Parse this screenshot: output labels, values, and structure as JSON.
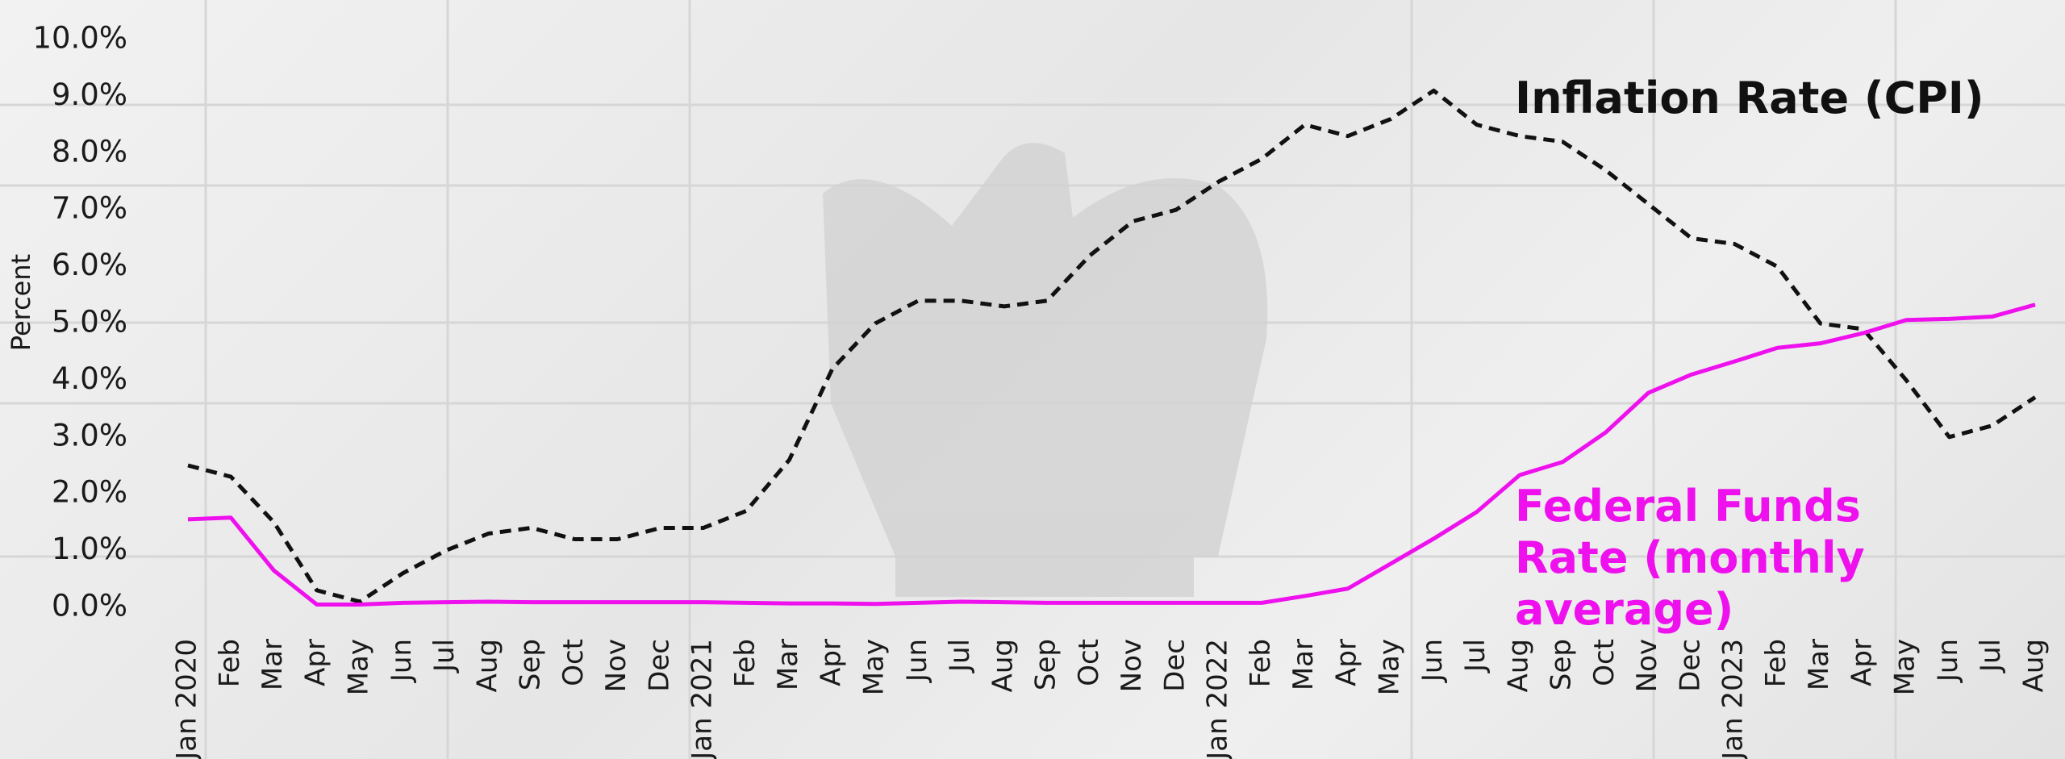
{
  "chart_data": {
    "type": "line",
    "y_label": "Percent",
    "categories": [
      "Jan 2020",
      "Feb",
      "Mar",
      "Apr",
      "May",
      "Jun",
      "Jul",
      "Aug",
      "Sep",
      "Oct",
      "Nov",
      "Dec",
      "Jan 2021",
      "Feb",
      "Mar",
      "Apr",
      "May",
      "Jun",
      "Jul",
      "Aug",
      "Sep",
      "Oct",
      "Nov",
      "Dec",
      "Jan 2022",
      "Feb",
      "Mar",
      "Apr",
      "May",
      "Jun",
      "Jul",
      "Aug",
      "Sep",
      "Oct",
      "Nov",
      "Dec",
      "Jan 2023",
      "Feb",
      "Mar",
      "Apr",
      "May",
      "Jun",
      "Jul",
      "Aug"
    ],
    "ylim": [
      0,
      10
    ],
    "yticks": [
      {
        "value": 0,
        "label": "0.0%"
      },
      {
        "value": 1,
        "label": "1.0%"
      },
      {
        "value": 2,
        "label": "2.0%"
      },
      {
        "value": 3,
        "label": "3.0%"
      },
      {
        "value": 4,
        "label": "4.0%"
      },
      {
        "value": 5,
        "label": "5.0%"
      },
      {
        "value": 6,
        "label": "6.0%"
      },
      {
        "value": 7,
        "label": "7.0%"
      },
      {
        "value": 8,
        "label": "8.0%"
      },
      {
        "value": 9,
        "label": "9.0%"
      },
      {
        "value": 10,
        "label": "10.0%"
      }
    ],
    "series": [
      {
        "name": "Inflation Rate (CPI)",
        "color": "#111111",
        "dashed": true,
        "values": [
          2.5,
          2.3,
          1.5,
          0.3,
          0.1,
          0.6,
          1.0,
          1.3,
          1.4,
          1.2,
          1.2,
          1.4,
          1.4,
          1.7,
          2.6,
          4.2,
          5.0,
          5.4,
          5.4,
          5.3,
          5.4,
          6.2,
          6.8,
          7.0,
          7.5,
          7.9,
          8.5,
          8.3,
          8.6,
          9.1,
          8.5,
          8.3,
          8.2,
          7.7,
          7.1,
          6.5,
          6.4,
          6.0,
          5.0,
          4.9,
          4.0,
          3.0,
          3.2,
          3.7
        ]
      },
      {
        "name": "Federal Funds Rate (monthly average)",
        "color": "#ee11ee",
        "dashed": false,
        "values": [
          1.55,
          1.58,
          0.65,
          0.05,
          0.05,
          0.08,
          0.09,
          0.1,
          0.09,
          0.09,
          0.09,
          0.09,
          0.09,
          0.08,
          0.07,
          0.07,
          0.06,
          0.08,
          0.1,
          0.09,
          0.08,
          0.08,
          0.08,
          0.08,
          0.08,
          0.08,
          0.2,
          0.33,
          0.77,
          1.21,
          1.68,
          2.33,
          2.56,
          3.08,
          3.78,
          4.1,
          4.33,
          4.57,
          4.65,
          4.83,
          5.06,
          5.08,
          5.12,
          5.33
        ]
      }
    ]
  }
}
